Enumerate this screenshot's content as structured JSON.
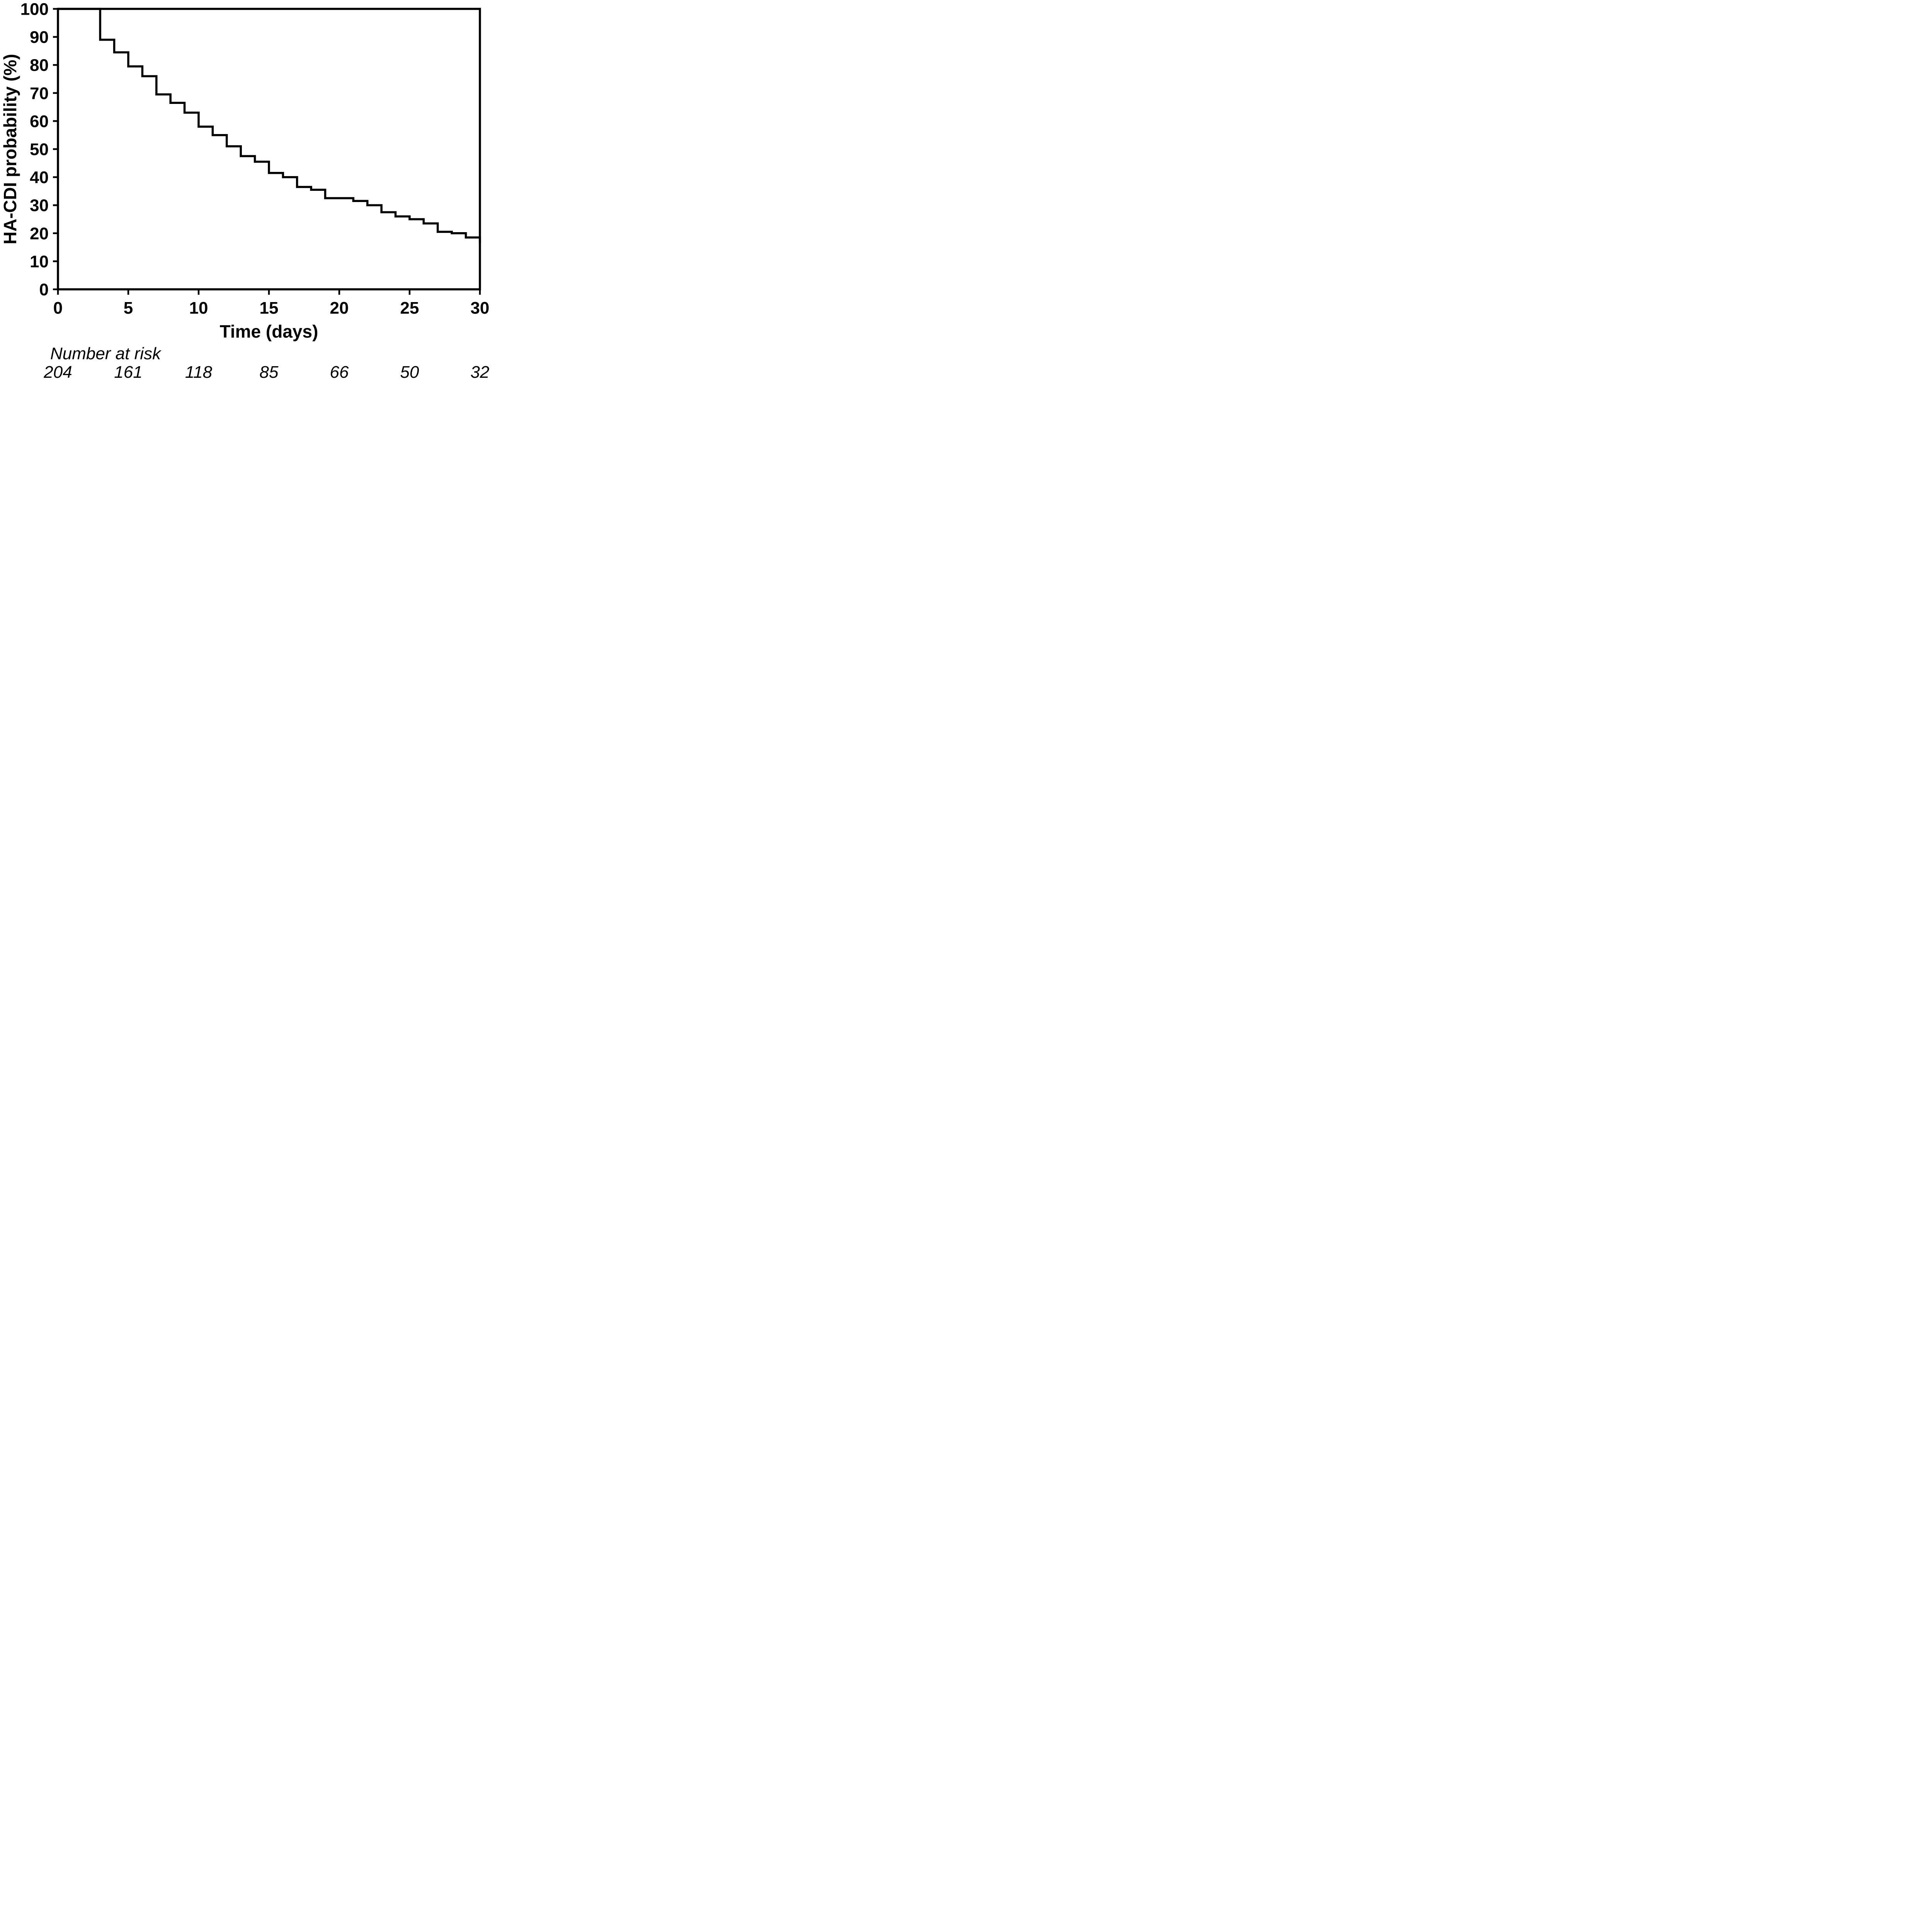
{
  "chart_data": {
    "type": "line",
    "subtype": "kaplan_meier_step_curve",
    "title": "",
    "xlabel": "Time (days)",
    "ylabel": "HA-CDI probability (%)",
    "xlim": [
      0,
      30
    ],
    "ylim": [
      0,
      100
    ],
    "x_ticks": [
      0,
      5,
      10,
      15,
      20,
      25,
      30
    ],
    "y_ticks": [
      0,
      10,
      20,
      30,
      40,
      50,
      60,
      70,
      80,
      90,
      100
    ],
    "grid": false,
    "frame_box": true,
    "legend": "none",
    "line_color": "#000000",
    "background_color": "#ffffff",
    "series": [
      {
        "name": "HA-CDI probability",
        "x": [
          0,
          3,
          4,
          5,
          6,
          7,
          8,
          9,
          10,
          11,
          12,
          13,
          14,
          15,
          16,
          17,
          18,
          19,
          21,
          22,
          23,
          24,
          25,
          26,
          27,
          28,
          29,
          30
        ],
        "y": [
          100,
          89,
          84.5,
          79.5,
          76,
          69.5,
          66.5,
          63,
          58,
          55,
          51,
          47.5,
          45.5,
          41.5,
          40,
          36.5,
          35.5,
          32.5,
          31.5,
          30,
          27.5,
          26,
          25,
          23.5,
          20.5,
          20,
          18.5,
          16.5
        ]
      }
    ],
    "number_at_risk": {
      "label": "Number at risk",
      "times": [
        0,
        5,
        10,
        15,
        20,
        25,
        30
      ],
      "counts": [
        204,
        161,
        118,
        85,
        66,
        50,
        32
      ]
    }
  }
}
